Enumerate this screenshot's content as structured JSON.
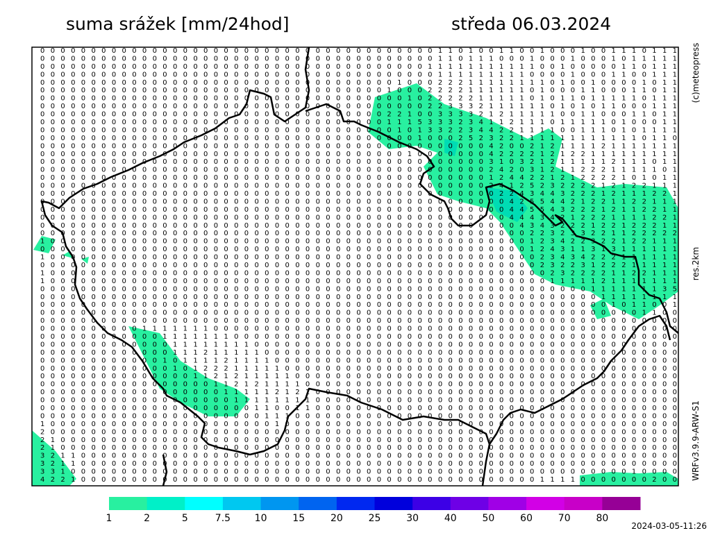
{
  "header": {
    "title": "suma srážek [mm/24hod]",
    "date": "středa 06.03.2024"
  },
  "side": {
    "copyright": "(c)meteopress",
    "resolution": "res.2km",
    "model": "WRFv3.9.9-ARW-S1"
  },
  "footer": {
    "timestamp": "2024-03-05-11:26"
  },
  "grid": {
    "rows": [
      "000000000000000000000000000000000000000110100110010001001110111",
      "000000000000000000000000000000000000000110111000100010001011111",
      "000000000000000000000000000000000000001111111111100100000110111",
      "000000000000000000000000000000000000000111111111000010001100111",
      "000000000000000000000000000000000001000222111111110100100001011",
      "000000000000000000000000000000000010002222111111010001100011011",
      "000000000000000000000000000000000000102222211111010110111110111",
      "000000000000000000000000000000000000002233321111110101011000111",
      "000000000000000000000000000000000022100333321211111001100011011",
      "000000000000000000000000000000000011153332341121110111110100011",
      "000000000000000000000000000000000001013322344221111001110101111",
      "000000000000000000000000000000000000010002523221111111111110110",
      "000000000000000000000000000000000000000000004200212111121111111",
      "000000000000000000000000000000000000100000004222212122111111111",
      "000000000000000000000000000000000000000000003103212111112111011",
      "000000000000000000000000000000000000000000002420312112221111101",
      "000000000000000000000000000000000000000000001244221212222101011",
      "000000000000000000000000000000000000000000002412523222212122111",
      "000000000000000000000000000000000000000000000224344322212111221",
      "000000000000000000000000000000000000000000000042554421221122111",
      "000000000000000000000000000000000000000000000044554322212112211",
      "000000000000000000000000000000000000000000000044434212221111221",
      "000000000000000000000000000000000000000000000004343222122122211",
      "000000000000000000000000000000000000000000000000223233221122222",
      "100000000000000000000000000000000000000000000000123422322122111",
      "000000000000000000000000000000000000000000000000124311313111111",
      "100000000000000000000000000000000000000000000000023434222111111",
      "000000000000000000000000000000000000000000000000023223122211111",
      "100000000000000000000000000000000000000000000000002322221122111",
      "100000000000000000000000000000000000000000000000001111121111111",
      "000000000000000000000000000000000000000000000000000000111111135",
      "000000000000000000000000000000000000000000000000000000011111111",
      "000000000000000000000000000000000000000000000000000000001011001",
      "000000000000000000000000000000000000000000000000000000000001100",
      "000000000000000000000000000000000000000000000000000000000000000",
      "000000000011111110000000000000000000000000000000000000000000000",
      "000000000000111111100000000000000000000000000000000000000000000",
      "000000000000011111111000000000000000000000000000000000000000000",
      "000000000000011121111100000000000000000000000000000000000000000",
      "000000000000101111211110000000000000000000000000000000000000000",
      "000000000000010122211111000000000000000000000000000000000000000",
      "000000000000000112121111100000000000000000000000000000000000000",
      "000000000000000001121211110000000000000000000000000000000000000",
      "000000000000000000111112121000000000000000000000000000000000000",
      "000000000000000000011111111000000000000000000000000000000000000",
      "000000000000000000000110011000000000000000000000000000000000000",
      "000000000000000000000011100000000000000000000000000000000000000",
      "100000000000000000000001000000000000000000000000000000000000000",
      "200000000000000000000000000000000000000000000000000000000000000",
      "210000000000000000000000000000000000000000000000000000000000000",
      "210000000000000000000000000000000000000000000000000000000000000",
      "321100000000000000000000000000000000000000000000000000000000000",
      "321100000000000000000000000000000000000000000000000000000000000",
      "331000000000000000000000000000000000000000000000000000000010000",
      "422100000000000000000000000000000000000000000000011110000000200"
    ]
  },
  "legend": {
    "labels": [
      1,
      2,
      5,
      7.5,
      10,
      15,
      20,
      25,
      30,
      40,
      50,
      60,
      70,
      80
    ],
    "colors": [
      "#28f0a0",
      "#00f0c8",
      "#00ffff",
      "#00c8f0",
      "#0096f0",
      "#0064f0",
      "#0028f0",
      "#0000dc",
      "#3c00e6",
      "#6e00e6",
      "#a000e6",
      "#d200e6",
      "#c800c8",
      "#960096"
    ]
  }
}
